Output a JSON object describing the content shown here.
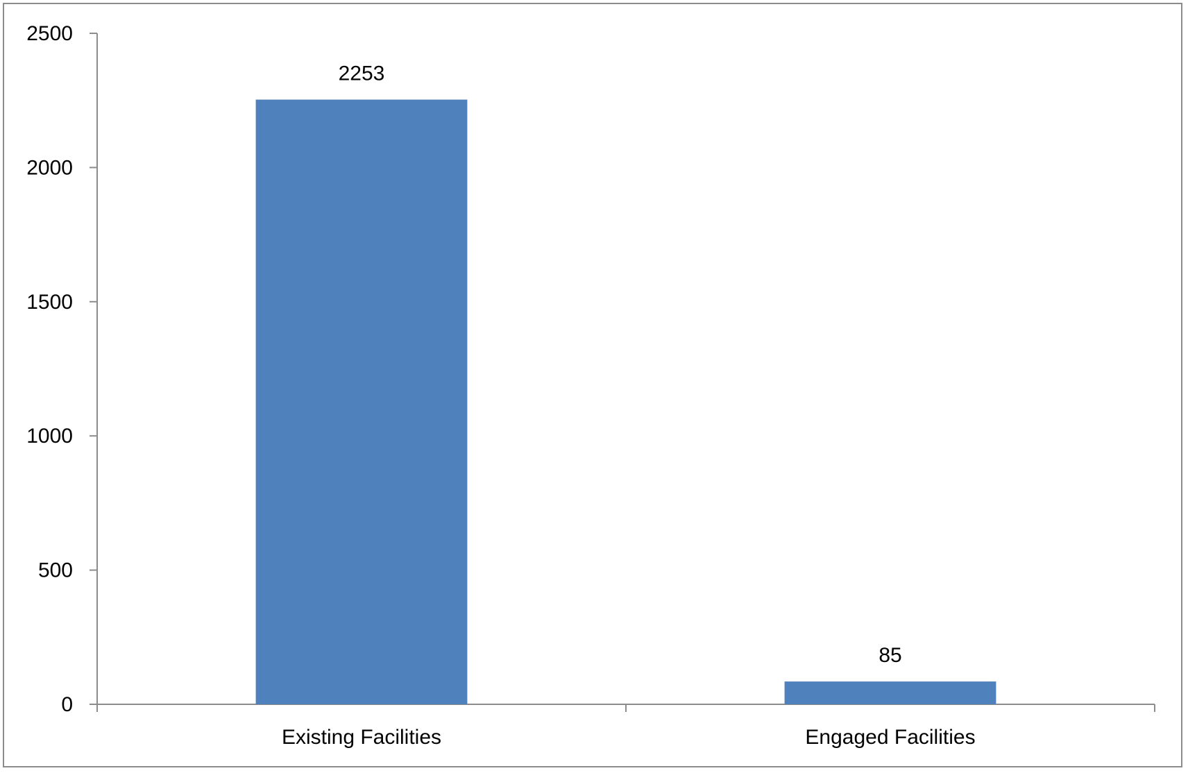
{
  "chart_data": {
    "type": "bar",
    "categories": [
      "Existing Facilities",
      "Engaged Facilities"
    ],
    "values": [
      2253,
      85
    ],
    "data_labels": [
      "2253",
      "85"
    ],
    "yticks": [
      0,
      500,
      1000,
      1500,
      2000,
      2500
    ],
    "ytick_labels": [
      "0",
      "500",
      "1000",
      "1500",
      "2000",
      "2500"
    ],
    "ylim": [
      0,
      2500
    ],
    "title": "",
    "xlabel": "",
    "ylabel": "",
    "grid": false,
    "legend": "none",
    "bar_color": "#4f81bd",
    "axis_color": "#8c8c8c"
  }
}
